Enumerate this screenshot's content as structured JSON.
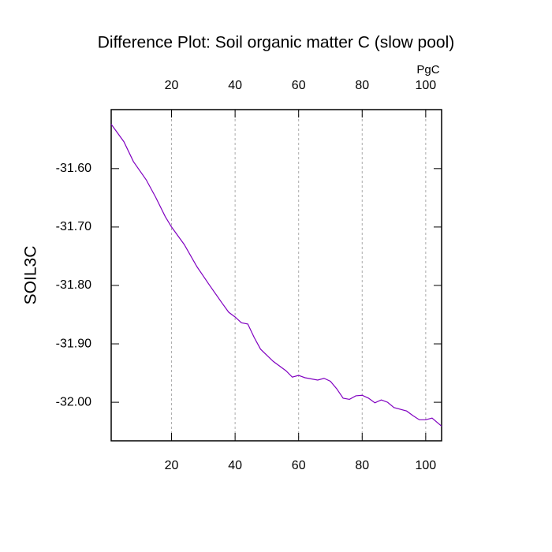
{
  "chart_data": {
    "type": "line",
    "title": "Difference Plot: Soil organic matter C (slow pool)",
    "ylabel": "SOIL3C",
    "top_axis_label": "PgC",
    "x": [
      1,
      5,
      8,
      12,
      15,
      18,
      20,
      24,
      28,
      32,
      36,
      38,
      40,
      42,
      44,
      46,
      48,
      52,
      56,
      58,
      60,
      62,
      66,
      68,
      70,
      72,
      74,
      76,
      78,
      80,
      82,
      84,
      86,
      88,
      90,
      94,
      96,
      98,
      100,
      102,
      105
    ],
    "series": [
      {
        "name": "SOIL3C",
        "color": "#8000c0",
        "values": [
          -31.524,
          -31.554,
          -31.588,
          -31.619,
          -31.649,
          -31.682,
          -31.7,
          -31.73,
          -31.768,
          -31.8,
          -31.831,
          -31.846,
          -31.854,
          -31.864,
          -31.866,
          -31.889,
          -31.909,
          -31.93,
          -31.946,
          -31.957,
          -31.954,
          -31.958,
          -31.962,
          -31.959,
          -31.964,
          -31.977,
          -31.993,
          -31.995,
          -31.989,
          -31.988,
          -31.993,
          -32.001,
          -31.996,
          -32.0,
          -32.009,
          -32.015,
          -32.023,
          -32.03,
          -32.03,
          -32.027,
          -32.041
        ]
      }
    ],
    "xlim": [
      1,
      105
    ],
    "xticks": [
      20,
      40,
      60,
      80,
      100
    ],
    "ylim": [
      -32.066,
      -31.499
    ],
    "yticks": [
      {
        "value": -31.6,
        "label": "-31.60"
      },
      {
        "value": -31.7,
        "label": "-31.70"
      },
      {
        "value": -31.8,
        "label": "-31.80"
      },
      {
        "value": -31.9,
        "label": "-31.90"
      },
      {
        "value": -32.0,
        "label": "-32.00"
      }
    ],
    "top_tick_color": "#0000ff",
    "bottom_tick_color": "#ff0000",
    "x_grid": true
  }
}
